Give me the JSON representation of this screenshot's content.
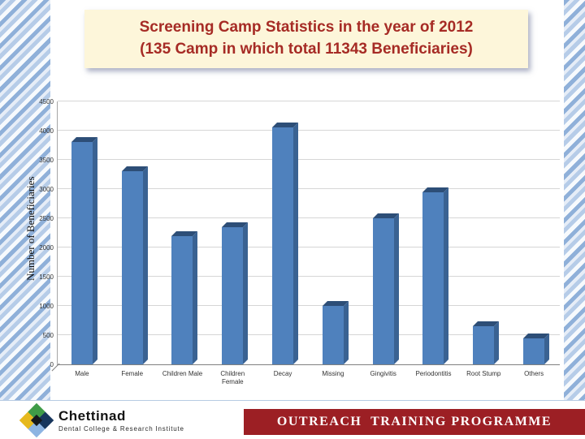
{
  "title": {
    "line1": "Screening Camp Statistics in the year of 2012",
    "line2": "(135 Camp in which total 11343 Beneficiaries)"
  },
  "chart_data": {
    "type": "bar",
    "title": "",
    "ylabel": "Number of Beneficiaries",
    "xlabel": "",
    "categories": [
      "Male",
      "Female",
      "Children Male",
      "Children Female",
      "Decay",
      "Missing",
      "Gingivitis",
      "Periodontitis",
      "Root Stump",
      "Others"
    ],
    "values": [
      3800,
      3300,
      2200,
      2350,
      4050,
      1000,
      2500,
      2950,
      650,
      450
    ],
    "ylim": [
      0,
      4500
    ],
    "yticks": [
      0,
      500,
      1000,
      1500,
      2000,
      2500,
      3000,
      3500,
      4000,
      4500
    ],
    "grid": true,
    "legend": false,
    "style": "3d-column",
    "bar_color": "#4f81bd",
    "bar_top_color": "#2d4e77",
    "bar_side_color": "#3a6292"
  },
  "footer": {
    "logo_name": "Chettinad",
    "logo_subtitle": "Dental College & Research Institute",
    "banner_text": "OUTREACH  TRAINING PROGRAMME"
  },
  "colors": {
    "title_bg": "#fdf6da",
    "title_text": "#a62b25",
    "banner_bg": "#9c1f24",
    "stripe_blue": "#8fb0d9"
  }
}
